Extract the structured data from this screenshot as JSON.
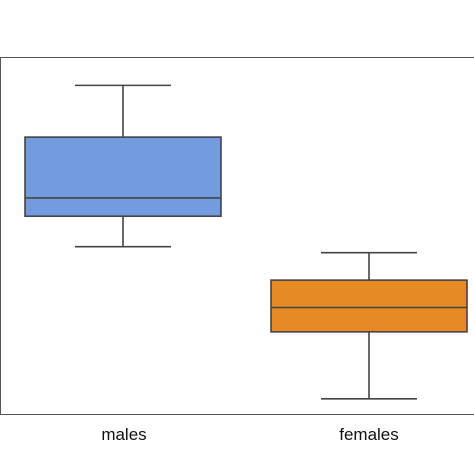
{
  "chart_data": {
    "type": "box",
    "categories": [
      "males",
      "females"
    ],
    "series": [
      {
        "category": "males",
        "whisker_low": 0.55,
        "q1": 0.65,
        "median": 0.71,
        "q3": 0.91,
        "whisker_high": 1.08,
        "color": "#729cdf"
      },
      {
        "category": "females",
        "whisker_low": 0.05,
        "q1": 0.27,
        "median": 0.35,
        "q3": 0.44,
        "whisker_high": 0.53,
        "color": "#e58a25"
      }
    ],
    "title": "",
    "xlabel": "",
    "ylabel": "",
    "ylim": [
      0,
      1.17
    ],
    "grid": false,
    "legend": "none"
  },
  "colors": {
    "edge": "#444444",
    "frame": "#555555"
  }
}
